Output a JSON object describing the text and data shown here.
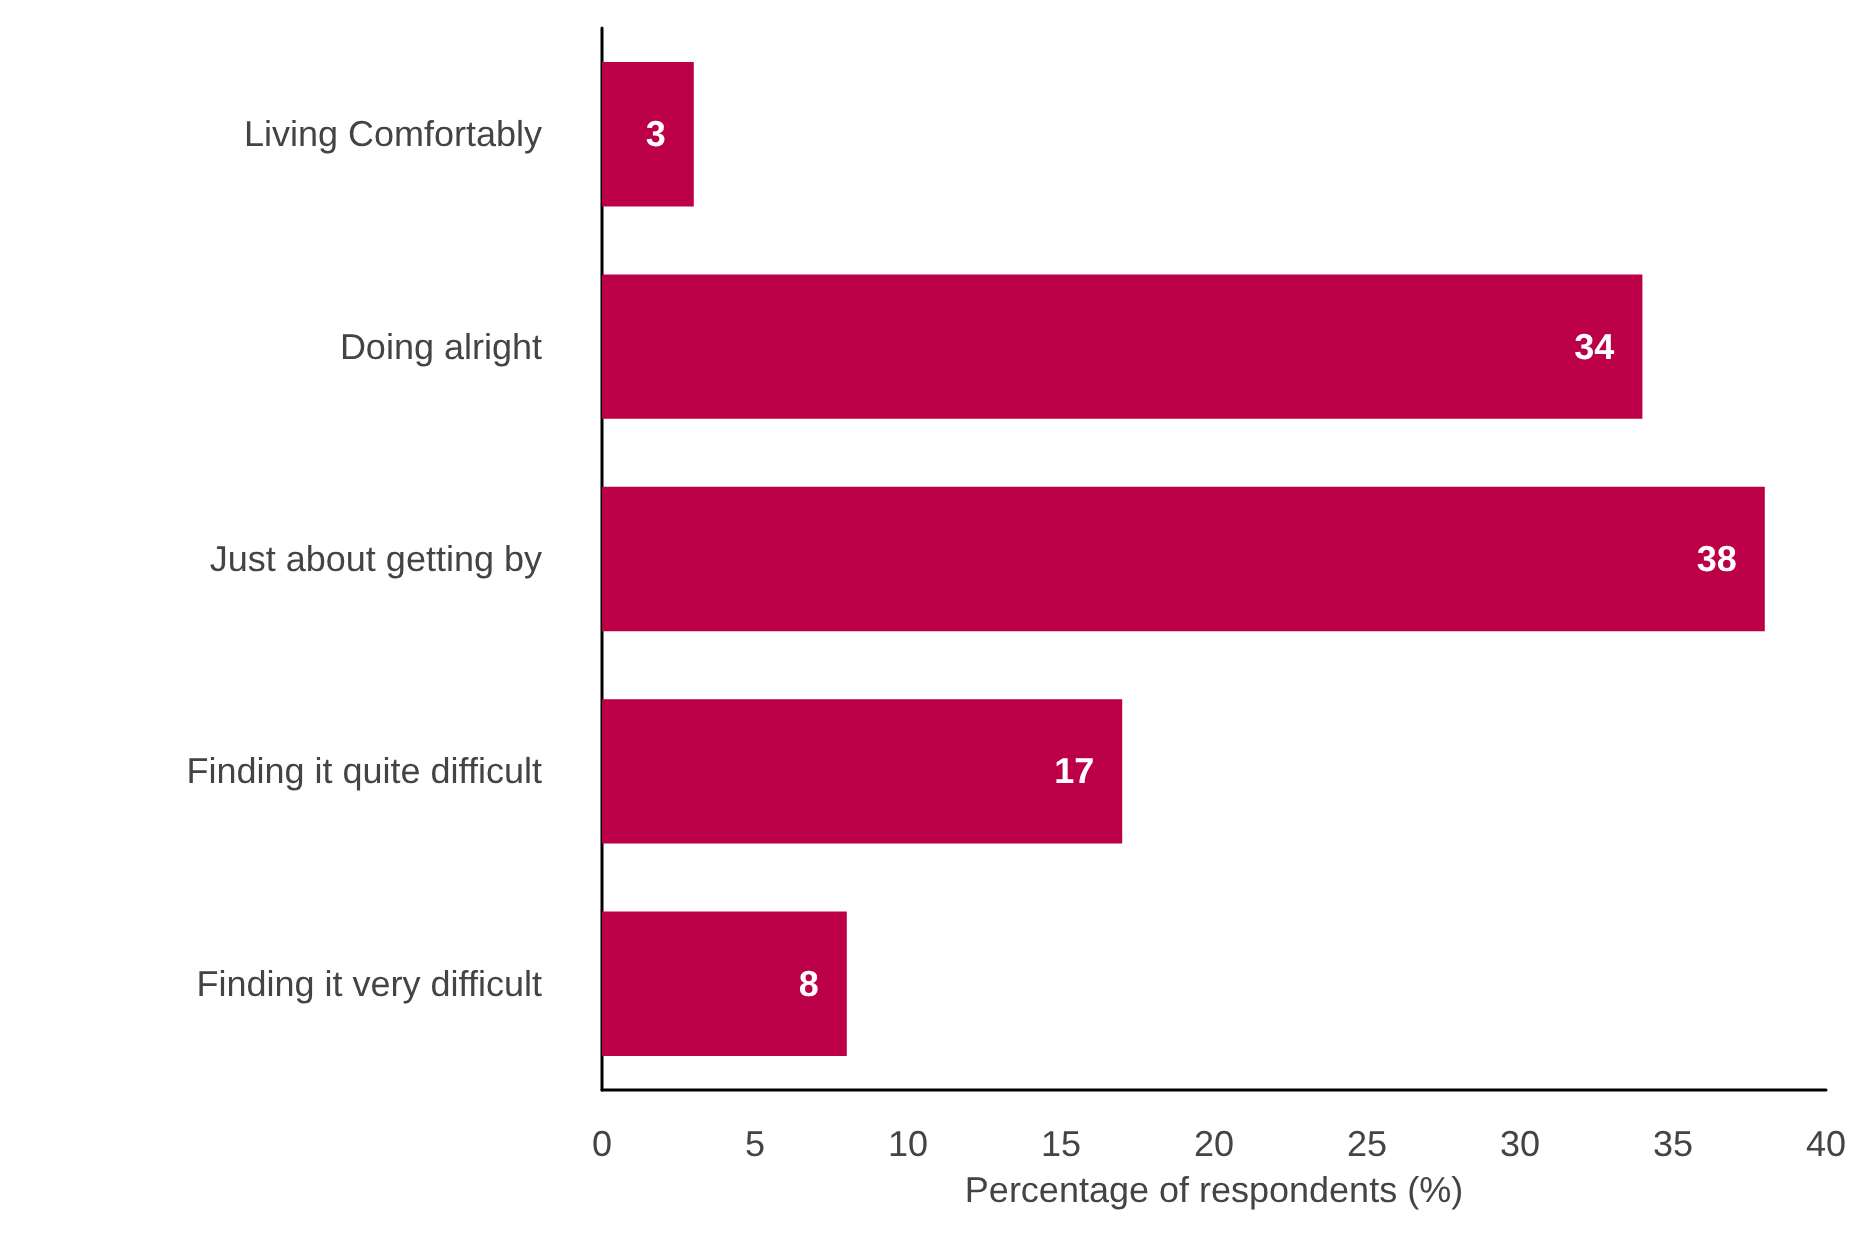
{
  "chart_data": {
    "type": "bar",
    "orientation": "horizontal",
    "xlabel": "Percentage of respondents (%)",
    "categories": [
      "Living Comfortably",
      "Doing alright",
      "Just about getting by",
      "Finding it quite difficult",
      "Finding it very difficult"
    ],
    "values": [
      3,
      34,
      38,
      17,
      8
    ],
    "color": "#bb0047",
    "xlim": [
      0,
      40
    ],
    "xticks": [
      0,
      5,
      10,
      15,
      20,
      25,
      30,
      35,
      40
    ],
    "data_labels": true,
    "grid": false
  }
}
